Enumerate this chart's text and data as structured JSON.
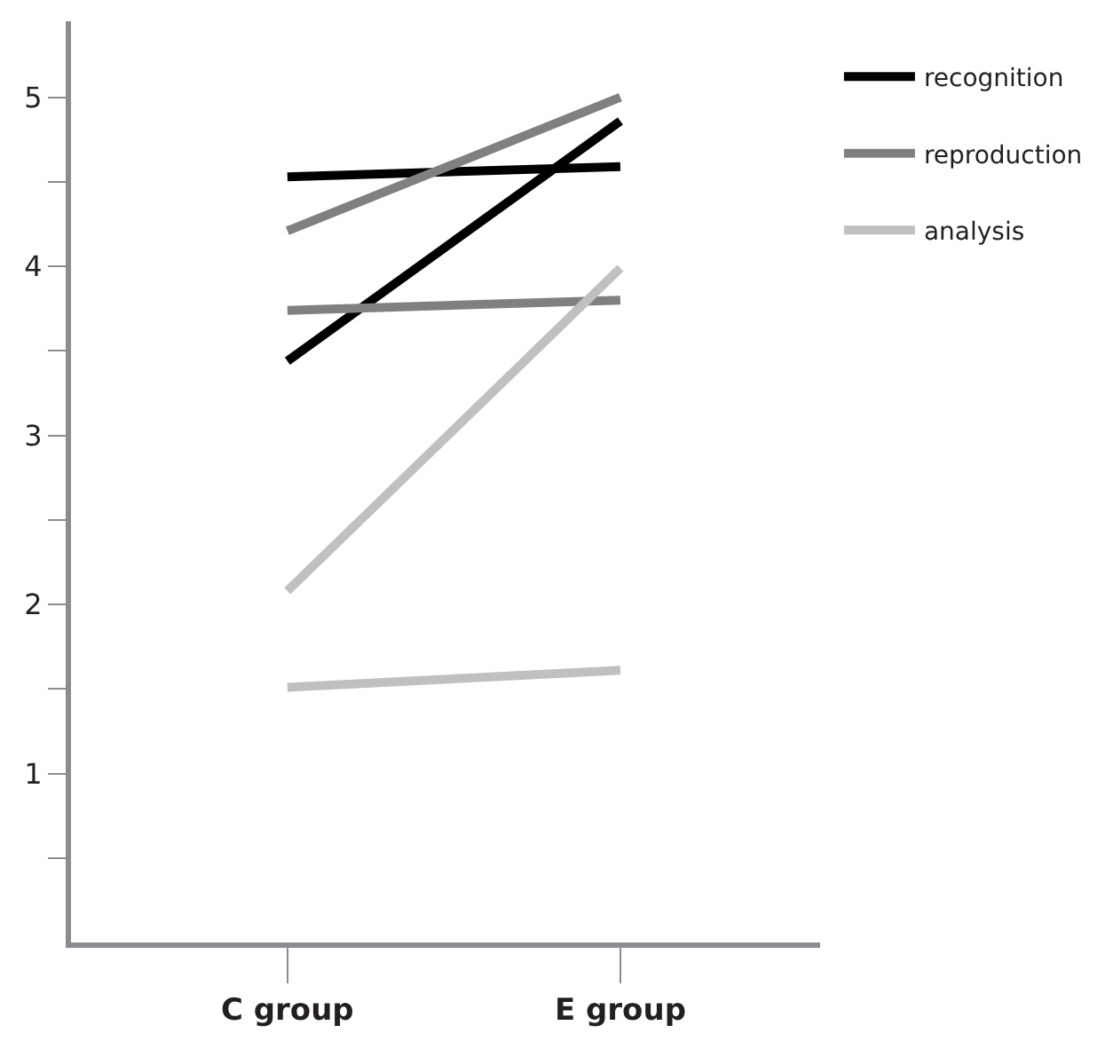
{
  "chart_data": {
    "type": "line",
    "categories": [
      "C group",
      "E group"
    ],
    "series": [
      {
        "name": "recognition",
        "color": "#000000",
        "values": [
          4.53,
          4.59
        ]
      },
      {
        "color": "#000000",
        "values": [
          3.44,
          4.86
        ]
      },
      {
        "name": "reproduction",
        "color": "#808080",
        "values": [
          4.21,
          5.0
        ]
      },
      {
        "color": "#808080",
        "values": [
          3.74,
          3.8
        ]
      },
      {
        "name": "analysis",
        "color": "#c0c0c0",
        "values": [
          2.08,
          3.99
        ]
      },
      {
        "color": "#c0c0c0",
        "values": [
          1.51,
          1.61
        ]
      }
    ],
    "ylim": [
      0,
      5.45
    ],
    "yticks": [
      {
        "value": 0.5,
        "label": null
      },
      1,
      {
        "value": 1.5,
        "label": null
      },
      2,
      {
        "value": 2.5,
        "label": null
      },
      3,
      {
        "value": 3.5,
        "label": null
      },
      4,
      {
        "value": 4.5,
        "label": null
      },
      5
    ],
    "legend": "top right",
    "marker": "none",
    "line_style": "solid"
  }
}
